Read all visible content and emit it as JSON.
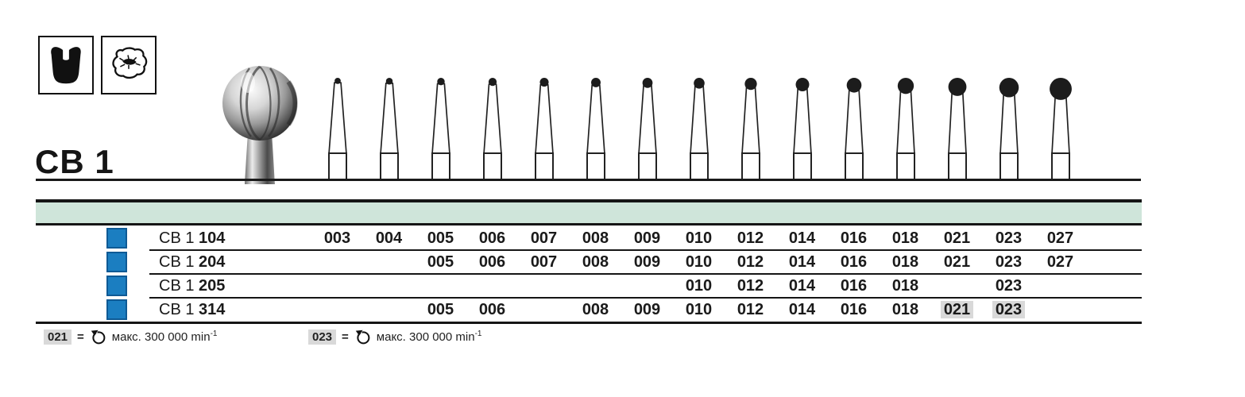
{
  "header": {
    "series_label": "CB 1",
    "icons": [
      {
        "name": "cavity-preparation-icon"
      },
      {
        "name": "occlusal-surface-icon"
      }
    ]
  },
  "size_columns": [
    "003",
    "004",
    "005",
    "006",
    "007",
    "008",
    "009",
    "010",
    "012",
    "014",
    "016",
    "018",
    "021",
    "023",
    "027"
  ],
  "products": [
    {
      "family": "CB 1",
      "variant": "104",
      "sizes": [
        "003",
        "004",
        "005",
        "006",
        "007",
        "008",
        "009",
        "010",
        "012",
        "014",
        "016",
        "018",
        "021",
        "023",
        "027"
      ],
      "highlighted": []
    },
    {
      "family": "CB 1",
      "variant": "204",
      "sizes": [
        "005",
        "006",
        "007",
        "008",
        "009",
        "010",
        "012",
        "014",
        "016",
        "018",
        "021",
        "023",
        "027"
      ],
      "highlighted": []
    },
    {
      "family": "CB 1",
      "variant": "205",
      "sizes": [
        "010",
        "012",
        "014",
        "016",
        "018",
        "023"
      ],
      "highlighted": []
    },
    {
      "family": "CB 1",
      "variant": "314",
      "sizes": [
        "005",
        "006",
        "008",
        "009",
        "010",
        "012",
        "014",
        "016",
        "018",
        "021",
        "023"
      ],
      "highlighted": [
        "021",
        "023"
      ]
    }
  ],
  "footnotes": [
    {
      "size": "021",
      "eq": "=",
      "icon": "rotation-speed-icon",
      "text": "макс. 300 000 min",
      "sup": "-1"
    },
    {
      "size": "023",
      "eq": "=",
      "icon": "rotation-speed-icon",
      "text": "макс. 300 000 min",
      "sup": "-1"
    }
  ],
  "colors": {
    "band_green": "#cfe5da",
    "square_blue": "#1b7ec1",
    "square_blue_border": "#0e5a95",
    "highlight_gray": "#d9d9d9",
    "line_black": "#151515"
  }
}
